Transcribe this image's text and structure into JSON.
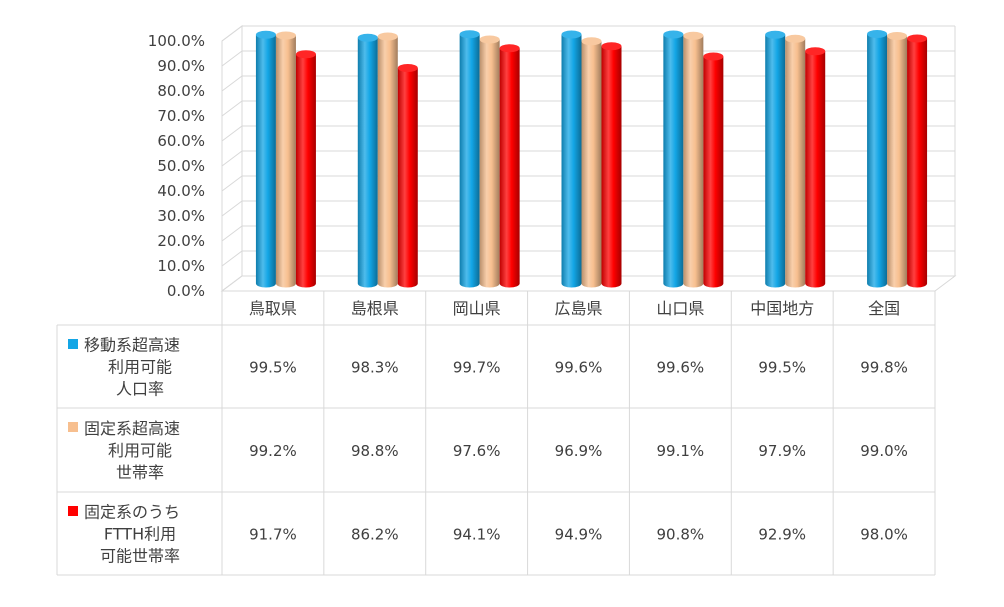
{
  "chart_data": {
    "type": "bar",
    "categories": [
      "鳥取県",
      "島根県",
      "岡山県",
      "広島県",
      "山口県",
      "中国地方",
      "全国"
    ],
    "ylim": [
      0,
      100
    ],
    "yticks": [
      "0.0%",
      "10.0%",
      "20.0%",
      "30.0%",
      "40.0%",
      "50.0%",
      "60.0%",
      "70.0%",
      "80.0%",
      "90.0%",
      "100.0%"
    ],
    "grid": true,
    "legend_placement": "left of data table",
    "series": [
      {
        "name_lines": [
          "移動系超高速",
          "利用可能",
          "人口率"
        ],
        "color": "#13A6E6",
        "values": [
          99.5,
          98.3,
          99.7,
          99.6,
          99.6,
          99.5,
          99.8
        ],
        "labels": [
          "99.5%",
          "98.3%",
          "99.7%",
          "99.6%",
          "99.6%",
          "99.5%",
          "99.8%"
        ]
      },
      {
        "name_lines": [
          "固定系超高速",
          "利用可能",
          "世帯率"
        ],
        "color": "#F7BF8F",
        "values": [
          99.2,
          98.8,
          97.6,
          96.9,
          99.1,
          97.9,
          99.0
        ],
        "labels": [
          "99.2%",
          "98.8%",
          "97.6%",
          "96.9%",
          "99.1%",
          "97.9%",
          "99.0%"
        ]
      },
      {
        "name_lines": [
          "固定系のうち",
          "FTTH利用",
          "可能世帯率"
        ],
        "color": "#FF0000",
        "values": [
          91.7,
          86.2,
          94.1,
          94.9,
          90.8,
          92.9,
          98.0
        ],
        "labels": [
          "91.7%",
          "86.2%",
          "94.1%",
          "94.9%",
          "90.8%",
          "92.9%",
          "98.0%"
        ]
      }
    ]
  }
}
